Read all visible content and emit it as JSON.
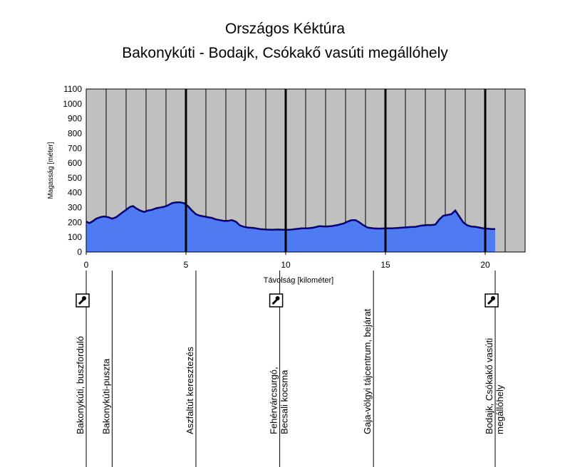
{
  "chart_data": {
    "type": "area",
    "title": "Országos Kéktúra",
    "subtitle": "Bakonykúti - Bodajk, Csókakő vasúti megállóhely",
    "xlabel": "Távolság [kilométer]",
    "ylabel": "Magasság [méter]",
    "xlim": [
      0,
      22
    ],
    "ylim": [
      0,
      1100
    ],
    "yticks": [
      0,
      100,
      200,
      300,
      400,
      500,
      600,
      700,
      800,
      900,
      1000,
      1100
    ],
    "xticks": [
      0,
      5,
      10,
      15,
      20
    ],
    "grid": "vertical",
    "colors": {
      "fill": "#4e7af2",
      "line": "#000080",
      "plot_bg": "#c0c0c0"
    },
    "series": [
      {
        "x": [
          0,
          0.15,
          0.3,
          0.5,
          0.7,
          0.9,
          1.1,
          1.3,
          1.5,
          1.6,
          1.8,
          2.0,
          2.2,
          2.35,
          2.5,
          2.7,
          2.9,
          3.1,
          3.3,
          3.5,
          3.7,
          3.9,
          4.1,
          4.3,
          4.5,
          4.7,
          4.9,
          5.1,
          5.3,
          5.5,
          5.7,
          5.9,
          6.1,
          6.3,
          6.5,
          6.7,
          6.9,
          7.1,
          7.3,
          7.5,
          7.7,
          7.9,
          8.1,
          8.4,
          8.7,
          9.0,
          9.3,
          9.6,
          9.9,
          10.2,
          10.5,
          10.8,
          11.1,
          11.4,
          11.7,
          12.0,
          12.3,
          12.6,
          12.9,
          13.1,
          13.3,
          13.5,
          13.7,
          13.9,
          14.1,
          14.4,
          14.7,
          15.0,
          15.3,
          15.6,
          15.9,
          16.2,
          16.5,
          16.8,
          17.1,
          17.3,
          17.5,
          17.7,
          17.9,
          18.1,
          18.3,
          18.5,
          18.7,
          18.9,
          19.1,
          19.3,
          19.5,
          19.7,
          19.9,
          20.1,
          20.3,
          20.5
        ],
        "y": [
          205,
          195,
          205,
          225,
          235,
          240,
          235,
          225,
          235,
          245,
          265,
          285,
          305,
          310,
          295,
          280,
          270,
          280,
          285,
          295,
          300,
          305,
          315,
          330,
          335,
          335,
          330,
          310,
          280,
          255,
          245,
          240,
          235,
          230,
          220,
          215,
          210,
          210,
          215,
          205,
          180,
          170,
          165,
          162,
          155,
          152,
          150,
          152,
          150,
          150,
          155,
          160,
          160,
          165,
          175,
          172,
          175,
          182,
          192,
          205,
          215,
          215,
          200,
          180,
          165,
          160,
          158,
          160,
          160,
          162,
          165,
          168,
          170,
          178,
          182,
          182,
          185,
          220,
          245,
          250,
          255,
          280,
          240,
          200,
          180,
          172,
          170,
          165,
          160,
          158,
          155,
          155
        ]
      }
    ],
    "locations": [
      {
        "km": 0,
        "label": "Bakonykúti, buszforduló",
        "icon": "stamp-icon"
      },
      {
        "km": 1.3,
        "label": "Bakonykúti-puszta"
      },
      {
        "km": 5.5,
        "label": "Aszfaltút keresztezés"
      },
      {
        "km": 9.7,
        "label": "Fehérvárcsurgó,",
        "label2": "Becsali kocsma",
        "icon": "stamp-icon"
      },
      {
        "km": 14.4,
        "label": "Gaja-völgyi tájcentrum, bejárat"
      },
      {
        "km": 20.5,
        "label": "Bodajk, Csókakő vasúti",
        "label2": "megállóhely",
        "icon": "stamp-icon"
      }
    ],
    "stage_lines_km": [
      5,
      10,
      15,
      20
    ]
  }
}
